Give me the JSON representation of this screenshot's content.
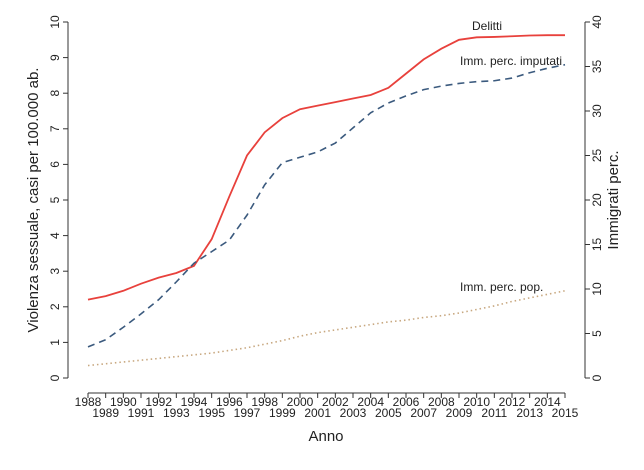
{
  "chart_data": {
    "type": "line",
    "x_label": "Anno",
    "y_label": "Violenza sessuale, casi per 100.000 ab.",
    "y2_label": "Immigrati perc.",
    "x": [
      1988,
      1989,
      1990,
      1991,
      1992,
      1993,
      1994,
      1995,
      1996,
      1997,
      1998,
      1999,
      2000,
      2001,
      2002,
      2003,
      2004,
      2005,
      2006,
      2007,
      2008,
      2009,
      2010,
      2011,
      2012,
      2013,
      2014,
      2015
    ],
    "xlim": [
      1988,
      2015
    ],
    "ylim": [
      0,
      10
    ],
    "yticks": [
      0,
      1,
      2,
      3,
      4,
      5,
      6,
      7,
      8,
      9,
      10
    ],
    "y2lim": [
      0,
      40
    ],
    "y2ticks": [
      0,
      5,
      10,
      15,
      20,
      25,
      30,
      35,
      40
    ],
    "series": [
      {
        "name": "Delitti",
        "color": "#e8413c",
        "style": "solid",
        "axis": "y",
        "values": [
          2.2,
          2.3,
          2.45,
          2.65,
          2.82,
          2.95,
          3.15,
          3.9,
          5.1,
          6.25,
          6.9,
          7.3,
          7.55,
          7.65,
          7.75,
          7.85,
          7.95,
          8.15,
          8.55,
          8.95,
          9.25,
          9.5,
          9.57,
          9.58,
          9.6,
          9.62,
          9.63,
          9.63
        ]
      },
      {
        "name": "Imm. perc. imputati",
        "color": "#3b5a7e",
        "style": "dashed",
        "axis": "y2",
        "values": [
          3.5,
          4.3,
          5.7,
          7.2,
          8.8,
          10.8,
          12.9,
          14.2,
          15.5,
          18.3,
          21.7,
          24.2,
          24.8,
          25.4,
          26.4,
          28.1,
          29.8,
          30.9,
          31.7,
          32.4,
          32.8,
          33.1,
          33.3,
          33.4,
          33.7,
          34.3,
          34.8,
          35.2
        ]
      },
      {
        "name": "Imm. perc. pop.",
        "color": "#c8a880",
        "style": "dotted",
        "axis": "y2",
        "values": [
          1.4,
          1.6,
          1.8,
          2.0,
          2.2,
          2.4,
          2.6,
          2.8,
          3.1,
          3.4,
          3.8,
          4.2,
          4.7,
          5.1,
          5.4,
          5.7,
          6.0,
          6.3,
          6.5,
          6.8,
          7.0,
          7.3,
          7.7,
          8.1,
          8.6,
          9.0,
          9.4,
          9.8
        ]
      }
    ]
  }
}
